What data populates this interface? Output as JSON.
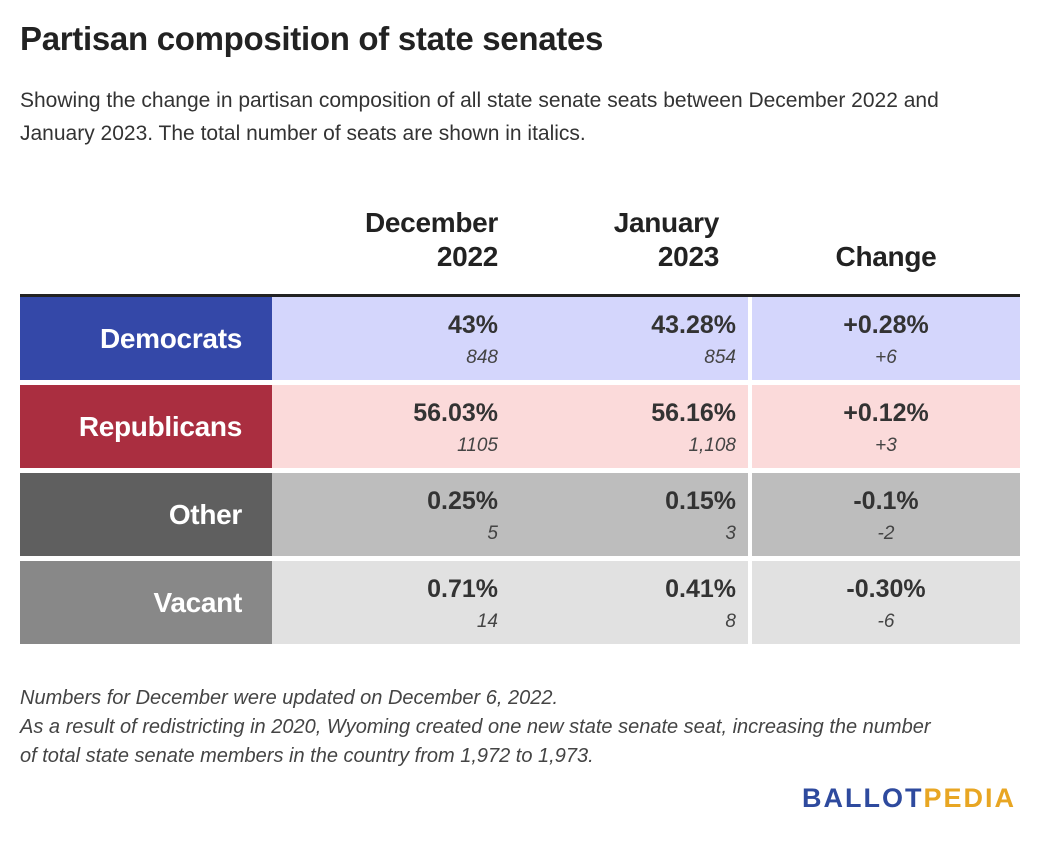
{
  "title": "Partisan composition of state senates",
  "subtitle": "Showing the change in partisan composition of all state senate seats between December 2022 and January 2023. The total number of seats are shown in italics.",
  "chart_data": {
    "type": "table",
    "columns": [
      {
        "line1": "December",
        "line2": "2022"
      },
      {
        "line1": "January",
        "line2": "2023"
      },
      {
        "line1": "",
        "line2": "Change"
      }
    ],
    "rows": [
      {
        "label": "Democrats",
        "dec_pct": "43%",
        "dec_count": "848",
        "jan_pct": "43.28%",
        "jan_count": "854",
        "change_pct": "+0.28%",
        "change_count": "+6"
      },
      {
        "label": "Republicans",
        "dec_pct": "56.03%",
        "dec_count": "1105",
        "jan_pct": "56.16%",
        "jan_count": "1,108",
        "change_pct": "+0.12%",
        "change_count": "+3"
      },
      {
        "label": "Other",
        "dec_pct": "0.25%",
        "dec_count": "5",
        "jan_pct": "0.15%",
        "jan_count": "3",
        "change_pct": "-0.1%",
        "change_count": "-2"
      },
      {
        "label": "Vacant",
        "dec_pct": "0.71%",
        "dec_count": "14",
        "jan_pct": "0.41%",
        "jan_count": "8",
        "change_pct": "-0.30%",
        "change_count": "-6"
      }
    ]
  },
  "colors": {
    "democrats_label": "#3448a8",
    "democrats_cell": "#d4d6fc",
    "republicans_label": "#aa2e40",
    "republicans_cell": "#fbdada",
    "other_label": "#5f5f5f",
    "other_cell": "#bdbdbd",
    "vacant_label": "#888888",
    "vacant_cell": "#e1e1e1",
    "logo_ballot": "#2e4a9e",
    "logo_pedia": "#e8a623"
  },
  "notes": [
    "Numbers for December were updated on December 6, 2022.",
    "As a result of redistricting in 2020, Wyoming created one new state senate seat, increasing the number",
    "of total state senate members in the country from 1,972 to 1,973."
  ],
  "logo": {
    "part1": "BALLOT",
    "part2": "PEDIA"
  }
}
